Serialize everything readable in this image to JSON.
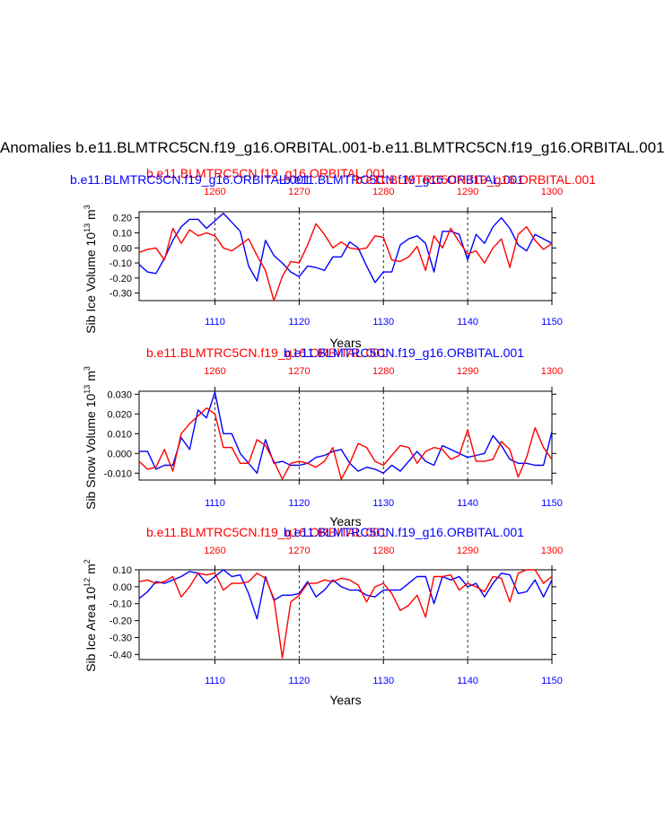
{
  "figure_title": "Anomalies b.e11.BLMTRC5CN.f19_g16.ORBITAL.001-b.e11.BLMTRC5CN.f19_g16.ORBITAL.001",
  "colors": {
    "case1": "#0000ff",
    "case2": "#ff0000",
    "axis": "#000000"
  },
  "chart_data": [
    {
      "type": "line",
      "ylabel": "Sib Ice Volume 10",
      "ylabel_exp": "13",
      "ylabel_unit": " m",
      "ylabel_unit_exp": "3",
      "xlabel": "Years",
      "title_case1": "b.e11.BLMTRC5CN.f19_g16.ORBITAL.001",
      "title_case2": "b.e11.BLMTRC5CN.f19_g16.ORBITAL.001",
      "xlim_bottom": [
        1101,
        1150
      ],
      "xlim_top": [
        1251,
        1300
      ],
      "xticks_bottom": [
        "1110",
        "1120",
        "1130",
        "1140",
        "1150"
      ],
      "xticks_top": [
        "1260",
        "1270",
        "1280",
        "1290",
        "1300"
      ],
      "ylim": [
        -0.35,
        0.24
      ],
      "yticks": [
        "0.20",
        "0.10",
        "0.00",
        "-0.10",
        "-0.20",
        "-0.30"
      ],
      "series": [
        {
          "name": "b.e11.BLMTRC5CN.f19_g16.ORBITAL.001",
          "color": "blue",
          "values": [
            -0.11,
            -0.16,
            -0.17,
            -0.07,
            0.05,
            0.14,
            0.19,
            0.19,
            0.13,
            0.18,
            0.23,
            0.17,
            0.11,
            -0.12,
            -0.22,
            0.05,
            -0.05,
            -0.1,
            -0.16,
            -0.19,
            -0.12,
            -0.13,
            -0.15,
            -0.06,
            -0.06,
            0.04,
            0.0,
            -0.12,
            -0.23,
            -0.16,
            -0.16,
            0.02,
            0.06,
            0.08,
            0.03,
            -0.16,
            0.11,
            0.11,
            0.09,
            -0.08,
            0.09,
            0.03,
            0.14,
            0.2,
            0.13,
            0.02,
            -0.02,
            0.09,
            0.06,
            0.03
          ]
        },
        {
          "name": "b.e11.BLMTRC5CN.f19_g16.ORBITAL.001",
          "color": "red",
          "values": [
            -0.03,
            -0.01,
            0.0,
            -0.08,
            0.13,
            0.03,
            0.12,
            0.08,
            0.1,
            0.08,
            0.0,
            -0.02,
            0.02,
            0.06,
            -0.05,
            -0.15,
            -0.35,
            -0.19,
            -0.09,
            -0.1,
            0.02,
            0.16,
            0.09,
            0.0,
            0.04,
            0.0,
            -0.01,
            0.0,
            0.08,
            0.07,
            -0.08,
            -0.09,
            -0.06,
            0.01,
            -0.15,
            0.08,
            0.0,
            0.13,
            0.04,
            -0.04,
            -0.02,
            -0.1,
            0.0,
            0.06,
            -0.13,
            0.09,
            0.14,
            0.05,
            -0.01,
            0.03
          ]
        }
      ]
    },
    {
      "type": "line",
      "ylabel": "Sib Snow Volume 10",
      "ylabel_exp": "13",
      "ylabel_unit": " m",
      "ylabel_unit_exp": "3",
      "xlabel": "Years",
      "title_case1": "b.e11.BLMTRC5CN.f19_g16.ORBITAL.001",
      "title_case2": "b.e11.BLMTRC5CN.f19_g16.ORBITAL.001",
      "xlim_bottom": [
        1101,
        1150
      ],
      "xlim_top": [
        1251,
        1300
      ],
      "xticks_bottom": [
        "1110",
        "1120",
        "1130",
        "1140",
        "1150"
      ],
      "xticks_top": [
        "1260",
        "1270",
        "1280",
        "1290",
        "1300"
      ],
      "ylim": [
        -0.0135,
        0.0315
      ],
      "yticks": [
        "0.030",
        "0.020",
        "0.010",
        "0.000",
        "-0.010"
      ],
      "series": [
        {
          "name": "b.e11.BLMTRC5CN.f19_g16.ORBITAL.001",
          "color": "blue",
          "values": [
            0.001,
            0.001,
            -0.008,
            -0.006,
            -0.006,
            0.008,
            0.002,
            0.022,
            0.018,
            0.031,
            0.01,
            0.01,
            0.0,
            -0.005,
            -0.01,
            0.007,
            -0.005,
            -0.004,
            -0.006,
            -0.006,
            -0.005,
            -0.002,
            -0.001,
            0.001,
            0.002,
            -0.005,
            -0.009,
            -0.007,
            -0.008,
            -0.01,
            -0.006,
            -0.009,
            -0.004,
            0.001,
            -0.004,
            -0.006,
            0.004,
            0.002,
            0.0,
            -0.002,
            -0.001,
            0.0,
            0.009,
            0.004,
            -0.003,
            -0.005,
            -0.005,
            -0.006,
            -0.006,
            0.011
          ]
        },
        {
          "name": "b.e11.BLMTRC5CN.f19_g16.ORBITAL.001",
          "color": "red",
          "values": [
            -0.004,
            -0.008,
            -0.007,
            0.002,
            -0.009,
            0.01,
            0.015,
            0.019,
            0.023,
            0.02,
            0.003,
            0.003,
            -0.005,
            -0.005,
            0.007,
            0.004,
            -0.004,
            -0.013,
            -0.005,
            -0.004,
            -0.005,
            -0.007,
            -0.004,
            0.003,
            -0.013,
            -0.005,
            0.005,
            0.003,
            -0.004,
            -0.006,
            -0.001,
            0.004,
            0.003,
            -0.005,
            0.001,
            0.003,
            0.002,
            -0.003,
            -0.001,
            0.012,
            -0.004,
            -0.004,
            -0.003,
            0.006,
            0.002,
            -0.012,
            -0.002,
            0.013,
            0.003,
            -0.003
          ]
        }
      ]
    },
    {
      "type": "line",
      "ylabel": "Sib Ice Area 10",
      "ylabel_exp": "12",
      "ylabel_unit": " m",
      "ylabel_unit_exp": "2",
      "xlabel": "Years",
      "title_case1": "b.e11.BLMTRC5CN.f19_g16.ORBITAL.001",
      "title_case2": "b.e11.BLMTRC5CN.f19_g16.ORBITAL.001",
      "xlim_bottom": [
        1101,
        1150
      ],
      "xlim_top": [
        1251,
        1300
      ],
      "xticks_bottom": [
        "1110",
        "1120",
        "1130",
        "1140",
        "1150"
      ],
      "xticks_top": [
        "1260",
        "1270",
        "1280",
        "1290",
        "1300"
      ],
      "ylim": [
        -0.43,
        0.1
      ],
      "yticks": [
        "0.10",
        "0.00",
        "-0.10",
        "-0.20",
        "-0.30",
        "-0.40"
      ],
      "series": [
        {
          "name": "b.e11.BLMTRC5CN.f19_g16.ORBITAL.001",
          "color": "blue",
          "values": [
            -0.07,
            -0.03,
            0.03,
            0.02,
            0.04,
            0.06,
            0.09,
            0.08,
            0.02,
            0.06,
            0.1,
            0.06,
            0.07,
            -0.04,
            -0.19,
            0.06,
            -0.08,
            -0.05,
            -0.05,
            -0.04,
            0.03,
            -0.06,
            -0.02,
            0.04,
            0.0,
            -0.02,
            -0.02,
            -0.05,
            -0.06,
            -0.02,
            -0.02,
            -0.02,
            0.02,
            0.06,
            0.06,
            -0.1,
            0.06,
            0.04,
            0.06,
            0.0,
            0.02,
            -0.06,
            0.02,
            0.08,
            0.07,
            -0.04,
            -0.03,
            0.04,
            -0.06,
            0.04
          ]
        },
        {
          "name": "b.e11.BLMTRC5CN.f19_g16.ORBITAL.001",
          "color": "red",
          "values": [
            0.03,
            0.04,
            0.02,
            0.03,
            0.06,
            -0.06,
            0.0,
            0.08,
            0.07,
            0.08,
            -0.02,
            0.02,
            0.02,
            0.03,
            0.08,
            0.05,
            -0.07,
            -0.42,
            -0.09,
            -0.05,
            0.02,
            0.02,
            0.04,
            0.03,
            0.05,
            0.04,
            0.01,
            -0.09,
            0.0,
            0.02,
            -0.04,
            -0.14,
            -0.11,
            -0.05,
            -0.18,
            0.06,
            0.06,
            0.07,
            -0.02,
            0.02,
            0.0,
            -0.03,
            0.06,
            0.05,
            -0.09,
            0.08,
            0.1,
            0.1,
            0.02,
            0.06
          ]
        }
      ]
    }
  ]
}
